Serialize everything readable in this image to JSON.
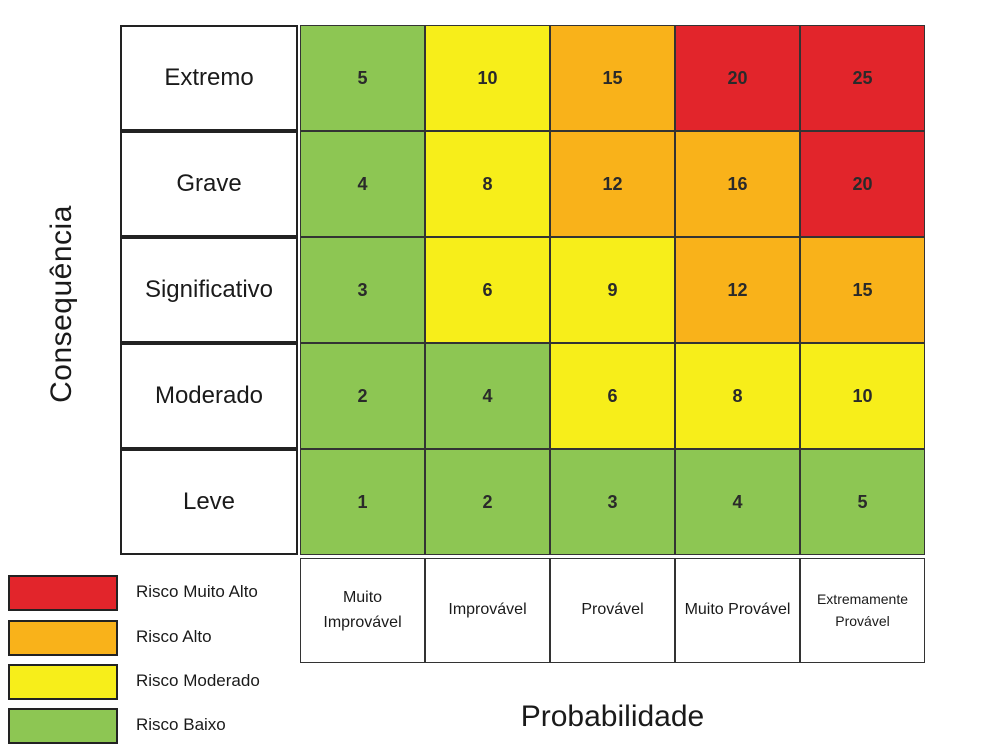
{
  "axes": {
    "y_label": "Consequência",
    "x_label": "Probabilidade"
  },
  "rows": [
    "Extremo",
    "Grave",
    "Significativo",
    "Moderado",
    "Leve"
  ],
  "columns": [
    "Muito Improvável",
    "Improvável",
    "Provável",
    "Muito Provável",
    "Extremamente Provável"
  ],
  "matrix": [
    [
      5,
      10,
      15,
      20,
      25
    ],
    [
      4,
      8,
      12,
      16,
      20
    ],
    [
      3,
      6,
      9,
      12,
      15
    ],
    [
      2,
      4,
      6,
      8,
      10
    ],
    [
      1,
      2,
      3,
      4,
      5
    ]
  ],
  "levels": [
    [
      3,
      2,
      1,
      0,
      0
    ],
    [
      3,
      2,
      1,
      1,
      0
    ],
    [
      3,
      2,
      2,
      1,
      1
    ],
    [
      3,
      3,
      2,
      2,
      2
    ],
    [
      3,
      3,
      3,
      3,
      3
    ]
  ],
  "legend": [
    {
      "label": "Risco Muito Alto",
      "color": "#e2252b"
    },
    {
      "label": "Risco Alto",
      "color": "#f9b21a"
    },
    {
      "label": "Risco Moderado",
      "color": "#f7ee1a"
    },
    {
      "label": "Risco Baixo",
      "color": "#8dc653"
    }
  ]
}
